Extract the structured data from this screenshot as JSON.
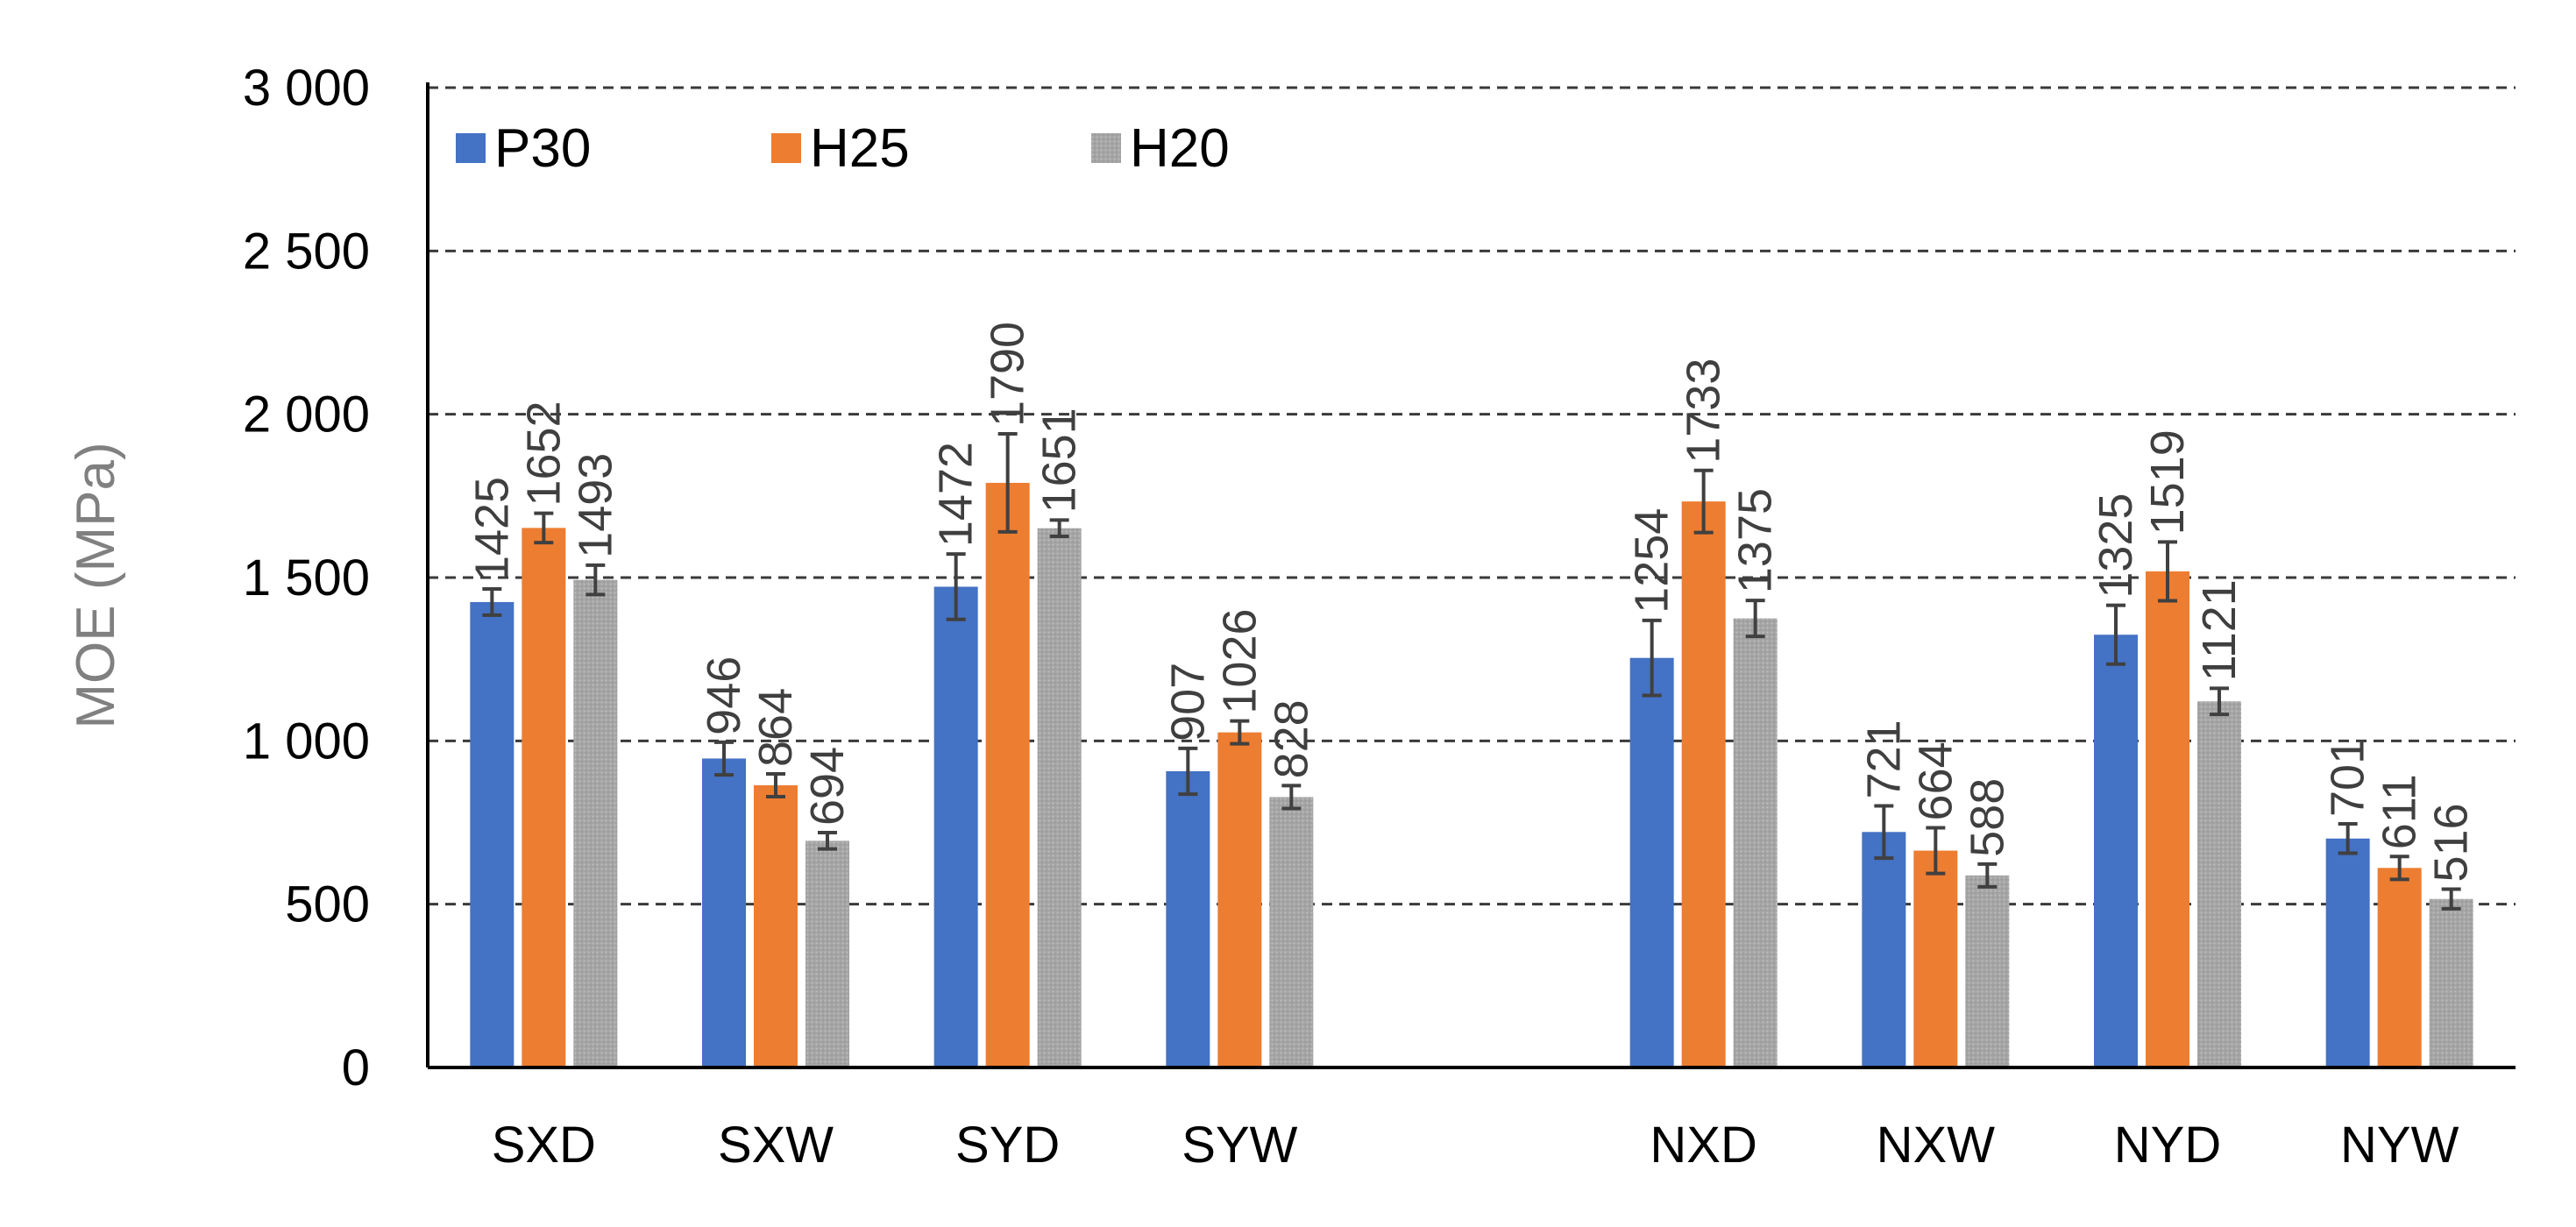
{
  "chart_data": {
    "type": "bar",
    "title": "",
    "xlabel": "",
    "ylabel": "MOE (MPa)",
    "ylim": [
      0,
      3000
    ],
    "yticks": [
      0,
      500,
      1000,
      1500,
      2000,
      2500,
      3000
    ],
    "ytick_labels": [
      "0",
      "500",
      "1 000",
      "1 500",
      "2 000",
      "2 500",
      "3 000"
    ],
    "grid": true,
    "legend_position": "top-left",
    "categories": [
      "SXD",
      "SXW",
      "SYD",
      "SYW",
      "",
      "NXD",
      "NXW",
      "NYD",
      "NYW"
    ],
    "series": [
      {
        "name": "P30",
        "color": "#4472c4",
        "values": [
          1425,
          946,
          1472,
          907,
          null,
          1254,
          721,
          1325,
          701
        ],
        "labels": [
          "1425",
          "946",
          "1472",
          "907",
          "",
          "1254",
          "721",
          "1325",
          "701"
        ],
        "errors": [
          40,
          50,
          100,
          70,
          null,
          115,
          80,
          90,
          45
        ]
      },
      {
        "name": "H25",
        "color": "#ed7d31",
        "values": [
          1652,
          864,
          1790,
          1026,
          null,
          1733,
          664,
          1519,
          611
        ],
        "labels": [
          "1652",
          "864",
          "1790",
          "1026",
          "",
          "1733",
          "664",
          "1519",
          "611"
        ],
        "errors": [
          45,
          35,
          150,
          35,
          null,
          95,
          70,
          90,
          35
        ]
      },
      {
        "name": "H20",
        "color": "#a5a5a5",
        "values": [
          1493,
          694,
          1651,
          828,
          null,
          1375,
          588,
          1121,
          516
        ],
        "labels": [
          "1493",
          "694",
          "1651",
          "828",
          "",
          "1375",
          "588",
          "1121",
          "516"
        ],
        "errors": [
          45,
          25,
          25,
          35,
          null,
          55,
          35,
          40,
          30
        ]
      }
    ]
  }
}
